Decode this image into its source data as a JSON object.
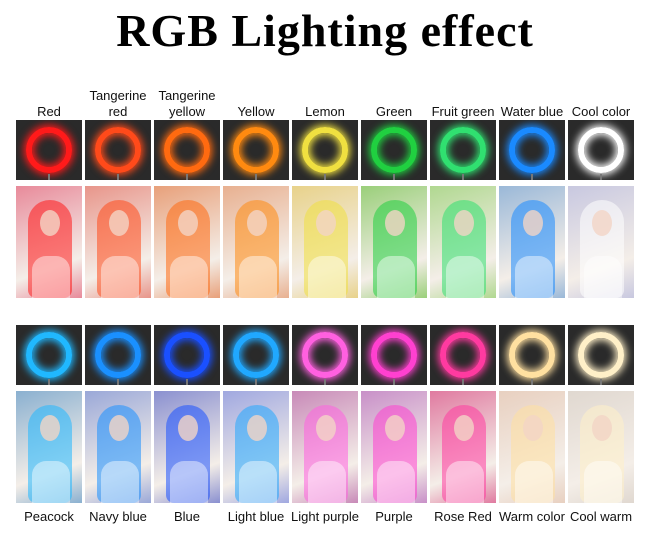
{
  "title": "RGB Lighting effect",
  "top_row": [
    {
      "label": "Red",
      "ring": "#ff1a1a",
      "tint": "#e88a9a"
    },
    {
      "label": "Tangerine red",
      "ring": "#ff4a1a",
      "tint": "#e8958a"
    },
    {
      "label": "Tangerine yellow",
      "ring": "#ff6a10",
      "tint": "#e8a07a"
    },
    {
      "label": "Yellow",
      "ring": "#ff8a10",
      "tint": "#e8b090"
    },
    {
      "label": "Lemon",
      "ring": "#f0e040",
      "tint": "#e8d28a"
    },
    {
      "label": "Green",
      "ring": "#20d040",
      "tint": "#9acf7a"
    },
    {
      "label": "Fruit green",
      "ring": "#30e070",
      "tint": "#b0d890"
    },
    {
      "label": "Water blue",
      "ring": "#1a8aff",
      "tint": "#9ab8d8"
    },
    {
      "label": "Cool color",
      "ring": "#ffffff",
      "tint": "#c8c8e0"
    }
  ],
  "bottom_row": [
    {
      "label": "Peacock",
      "ring": "#20b8ff",
      "tint": "#8ab0d0"
    },
    {
      "label": "Navy blue",
      "ring": "#1a90ff",
      "tint": "#9aa8d8"
    },
    {
      "label": "Blue",
      "ring": "#1a50ff",
      "tint": "#8a90d0"
    },
    {
      "label": "Light blue",
      "ring": "#20a8ff",
      "tint": "#a0a8e0"
    },
    {
      "label": "Light purple",
      "ring": "#ff60e0",
      "tint": "#c88ab8"
    },
    {
      "label": "Purple",
      "ring": "#ff40d0",
      "tint": "#c890c8"
    },
    {
      "label": "Rose Red",
      "ring": "#ff3aa0",
      "tint": "#e07aa0"
    },
    {
      "label": "Warm color",
      "ring": "#ffe0a0",
      "tint": "#e8d0c0"
    },
    {
      "label": "Cool warm",
      "ring": "#fff0c8",
      "tint": "#e0d8d0"
    }
  ]
}
